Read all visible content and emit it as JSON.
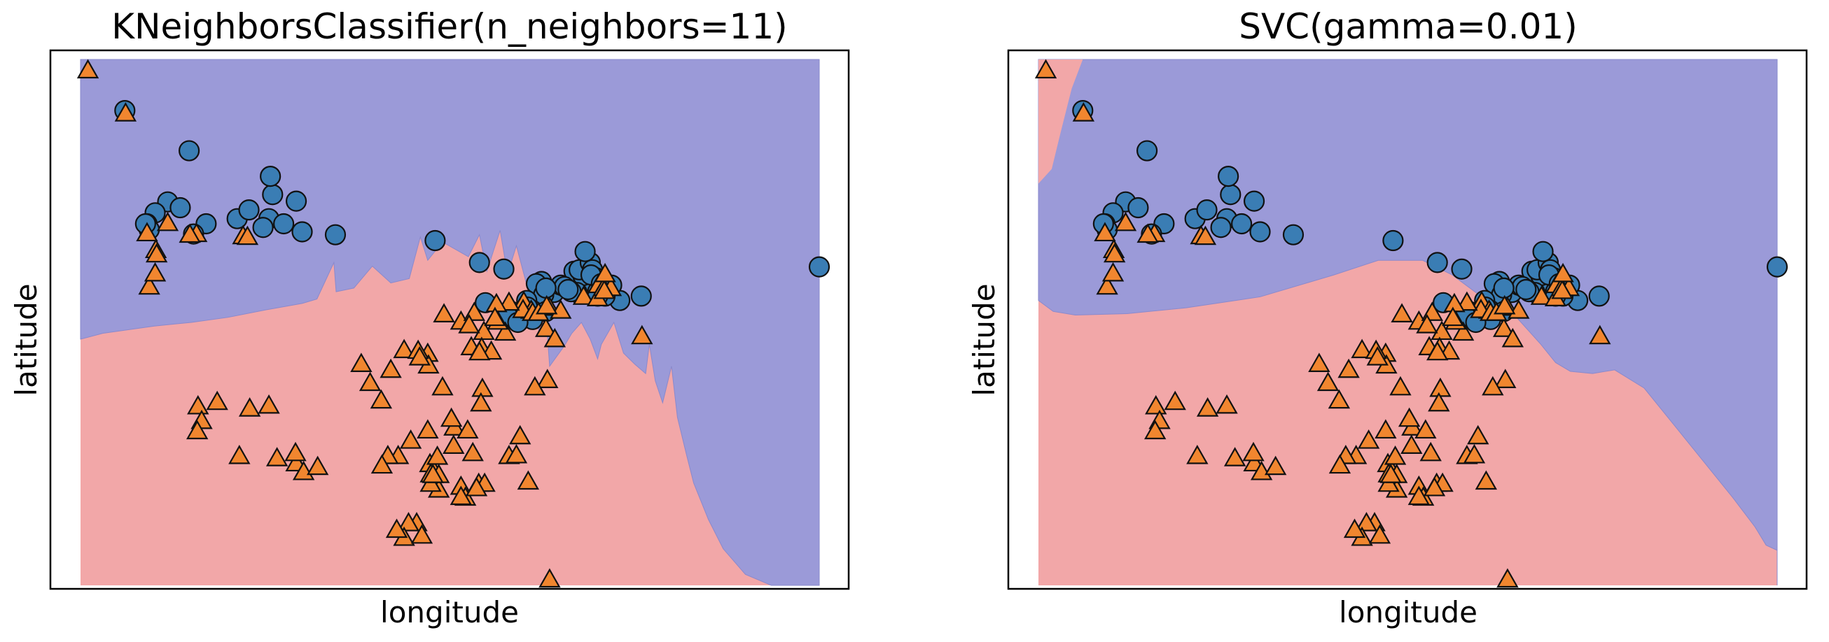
{
  "colors": {
    "class0_region": "#9b9ad8",
    "class1_region": "#f2a7a8",
    "class0_marker": "#3a7db4",
    "class1_marker": "#f1862f",
    "marker_edge": "#111111"
  },
  "chart_data": [
    {
      "type": "scatter",
      "title": "KNeighborsClassifier(n_neighbors=11)",
      "xlabel": "longitude",
      "ylabel": "latitude",
      "xticks": [],
      "yticks": [],
      "grid": false,
      "xlim": [
        0,
        1000
      ],
      "ylim": [
        0,
        720
      ],
      "decision_boundary": [
        [
          0,
          337
        ],
        [
          30,
          345
        ],
        [
          100,
          355
        ],
        [
          150,
          360
        ],
        [
          200,
          367
        ],
        [
          250,
          377
        ],
        [
          300,
          386
        ],
        [
          320,
          392
        ],
        [
          343,
          442
        ],
        [
          346,
          402
        ],
        [
          370,
          407
        ],
        [
          395,
          437
        ],
        [
          420,
          414
        ],
        [
          445,
          420
        ],
        [
          460,
          477
        ],
        [
          470,
          445
        ],
        [
          490,
          470
        ],
        [
          525,
          450
        ],
        [
          540,
          480
        ],
        [
          550,
          430
        ],
        [
          568,
          486
        ],
        [
          578,
          426
        ],
        [
          590,
          465
        ],
        [
          620,
          350
        ],
        [
          630,
          370
        ],
        [
          635,
          300
        ],
        [
          655,
          328
        ],
        [
          665,
          345
        ],
        [
          678,
          360
        ],
        [
          690,
          337
        ],
        [
          700,
          310
        ],
        [
          705,
          330
        ],
        [
          722,
          360
        ],
        [
          735,
          318
        ],
        [
          750,
          303
        ],
        [
          765,
          290
        ],
        [
          770,
          330
        ],
        [
          778,
          280
        ],
        [
          788,
          250
        ],
        [
          800,
          300
        ],
        [
          808,
          230
        ],
        [
          820,
          180
        ],
        [
          830,
          140
        ],
        [
          850,
          90
        ],
        [
          870,
          50
        ],
        [
          900,
          15
        ],
        [
          935,
          0
        ]
      ],
      "series": [
        {
          "class": 0,
          "marker": "circle",
          "points": [
            [
              60,
              650
            ],
            [
              147,
              595
            ],
            [
              260,
              535
            ],
            [
              257,
              560
            ],
            [
              292,
              526
            ],
            [
              212,
              502
            ],
            [
              255,
              502
            ],
            [
              170,
              495
            ],
            [
              118,
              525
            ],
            [
              101,
              510
            ],
            [
              135,
              517
            ],
            [
              90,
              495
            ],
            [
              93,
              487
            ],
            [
              88,
              495
            ],
            [
              153,
              481
            ],
            [
              228,
              514
            ],
            [
              247,
              490
            ],
            [
              275,
              495
            ],
            [
              345,
              480
            ],
            [
              300,
              484
            ],
            [
              480,
              472
            ],
            [
              540,
              442
            ],
            [
              573,
              433
            ],
            [
              668,
              430
            ],
            [
              624,
              416
            ],
            [
              617,
              413
            ],
            [
              641,
              401
            ],
            [
              650,
              411
            ],
            [
              683,
              417
            ],
            [
              680,
              424
            ],
            [
              675,
              432
            ],
            [
              690,
              442
            ],
            [
              655,
              409
            ],
            [
              672,
              401
            ],
            [
              664,
              402
            ],
            [
              627,
              398
            ],
            [
              711,
              408
            ],
            [
              683,
              457
            ],
            [
              693,
              432
            ],
            [
              698,
              421
            ],
            [
              700,
              402
            ],
            [
              730,
              390
            ],
            [
              691,
              425
            ],
            [
              705,
              413
            ],
            [
              719,
              411
            ],
            [
              710,
              396
            ],
            [
              700,
              396
            ],
            [
              759,
              396
            ],
            [
              660,
              405
            ],
            [
              604,
              390
            ],
            [
              630,
              407
            ],
            [
              600,
              373
            ],
            [
              612,
              364
            ],
            [
              630,
              375
            ],
            [
              605,
              381
            ],
            [
              583,
              375
            ],
            [
              588,
              370
            ],
            [
              578,
              369
            ],
            [
              1000,
              436
            ],
            [
              548,
              387
            ],
            [
              592,
              360
            ]
          ]
        },
        {
          "class": 1,
          "marker": "triangle",
          "points": [
            [
              10,
              704
            ],
            [
              61,
              645
            ],
            [
              118,
              495
            ],
            [
              90,
              481
            ],
            [
              157,
              480
            ],
            [
              148,
              479
            ],
            [
              220,
              477
            ],
            [
              226,
              476
            ],
            [
              102,
              458
            ],
            [
              103,
              452
            ],
            [
              93,
              408
            ],
            [
              101,
              426
            ],
            [
              515,
              360
            ],
            [
              630,
              350
            ],
            [
              533,
              372
            ],
            [
              600,
              387
            ],
            [
              610,
              375
            ],
            [
              599,
              376
            ],
            [
              635,
              379
            ],
            [
              612,
              372
            ],
            [
              620,
              372
            ],
            [
              650,
              375
            ],
            [
              575,
              345
            ],
            [
              546,
              346
            ],
            [
              580,
              386
            ],
            [
              631,
              381
            ],
            [
              681,
              394
            ],
            [
              701,
              410
            ],
            [
              700,
              392
            ],
            [
              708,
              406
            ],
            [
              718,
              406
            ],
            [
              709,
              402
            ],
            [
              710,
              425
            ],
            [
              760,
              340
            ],
            [
              563,
              384
            ],
            [
              565,
              360
            ],
            [
              529,
              325
            ],
            [
              642,
              336
            ],
            [
              543,
              324
            ],
            [
              556,
              319
            ],
            [
              561,
              365
            ],
            [
              632,
              280
            ],
            [
              420,
              294
            ],
            [
              470,
              316
            ],
            [
              438,
              321
            ],
            [
              471,
              300
            ],
            [
              490,
              270
            ],
            [
              540,
              318
            ],
            [
              526,
              355
            ],
            [
              457,
              320
            ],
            [
              459,
              311
            ],
            [
              392,
              276
            ],
            [
              407,
              252
            ],
            [
              470,
              211
            ],
            [
              506,
              215
            ],
            [
              380,
              302
            ],
            [
              492,
              370
            ],
            [
              544,
              268
            ],
            [
              542,
              248
            ],
            [
              524,
              211
            ],
            [
              580,
              176
            ],
            [
              615,
              270
            ],
            [
              539,
              138
            ],
            [
              547,
              138
            ],
            [
              515,
              134
            ],
            [
              521,
              119
            ],
            [
              447,
              197
            ],
            [
              430,
              176
            ],
            [
              416,
              176
            ],
            [
              215,
              176
            ],
            [
              266,
              173
            ],
            [
              292,
              166
            ],
            [
              291,
              180
            ],
            [
              229,
              241
            ],
            [
              185,
              250
            ],
            [
              159,
              244
            ],
            [
              164,
              224
            ],
            [
              158,
              210
            ],
            [
              255,
              245
            ],
            [
              302,
              154
            ],
            [
              321,
              161
            ],
            [
              473,
              165
            ],
            [
              485,
              130
            ],
            [
              515,
              120
            ],
            [
              536,
              132
            ],
            [
              606,
              141
            ],
            [
              590,
              177
            ],
            [
              505,
              190
            ],
            [
              502,
              227
            ],
            [
              408,
              163
            ],
            [
              455,
              84
            ],
            [
              444,
              84
            ],
            [
              438,
              64
            ],
            [
              462,
              67
            ],
            [
              428,
              75
            ],
            [
              474,
              138
            ],
            [
              474,
              151
            ],
            [
              595,
              203
            ],
            [
              531,
              180
            ],
            [
              635,
              7
            ],
            [
              483,
              175
            ],
            [
              485,
              150
            ],
            [
              477,
              150
            ]
          ]
        }
      ]
    },
    {
      "type": "scatter",
      "title": "SVC(gamma=0.01)",
      "xlabel": "longitude",
      "ylabel": "latitude",
      "xticks": [],
      "yticks": [],
      "grid": false,
      "xlim": [
        0,
        1000
      ],
      "ylim": [
        0,
        720
      ],
      "decision_boundary": [
        [
          0,
          390
        ],
        [
          20,
          375
        ],
        [
          50,
          370
        ],
        [
          120,
          372
        ],
        [
          200,
          380
        ],
        [
          300,
          395
        ],
        [
          400,
          425
        ],
        [
          460,
          445
        ],
        [
          520,
          445
        ],
        [
          560,
          425
        ],
        [
          600,
          395
        ],
        [
          640,
          375
        ],
        [
          680,
          330
        ],
        [
          700,
          305
        ],
        [
          720,
          293
        ],
        [
          750,
          290
        ],
        [
          780,
          295
        ],
        [
          820,
          270
        ],
        [
          860,
          220
        ],
        [
          900,
          170
        ],
        [
          940,
          120
        ],
        [
          970,
          80
        ],
        [
          985,
          55
        ],
        [
          1000,
          48
        ]
      ],
      "left_boundary": [
        [
          0,
          550
        ],
        [
          20,
          480
        ],
        [
          25,
          430
        ],
        [
          30,
          400
        ],
        [
          35,
          380
        ]
      ],
      "top_left_boundary": [
        [
          0,
          720
        ],
        [
          60,
          720
        ],
        [
          45,
          680
        ],
        [
          30,
          620
        ],
        [
          18,
          570
        ],
        [
          0,
          550
        ]
      ],
      "series": [
        {
          "class": 0,
          "marker": "circle"
        },
        {
          "class": 1,
          "marker": "triangle"
        }
      ]
    }
  ]
}
